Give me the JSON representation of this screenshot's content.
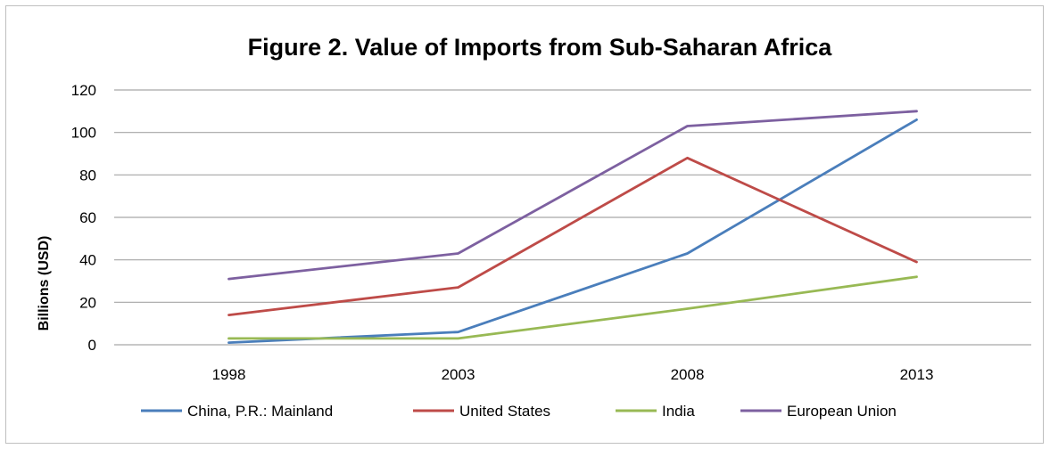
{
  "chart_data": {
    "type": "line",
    "title": "Figure 2. Value of Imports from Sub-Saharan Africa",
    "xlabel": "",
    "ylabel": "Billions  (USD)",
    "categories": [
      "1998",
      "2003",
      "2008",
      "2013"
    ],
    "ylim": [
      0,
      120
    ],
    "yticks": [
      0,
      20,
      40,
      60,
      80,
      100,
      120
    ],
    "grid": true,
    "legend_position": "bottom",
    "series": [
      {
        "name": "China, P.R.: Mainland",
        "color": "#4a7ebb",
        "values": [
          1,
          6,
          43,
          106
        ]
      },
      {
        "name": "United States",
        "color": "#be4b48",
        "values": [
          14,
          27,
          88,
          39
        ]
      },
      {
        "name": "India",
        "color": "#98b954",
        "values": [
          3,
          3,
          17,
          32
        ]
      },
      {
        "name": "European Union",
        "color": "#7d60a0",
        "values": [
          31,
          43,
          103,
          110
        ]
      }
    ]
  }
}
